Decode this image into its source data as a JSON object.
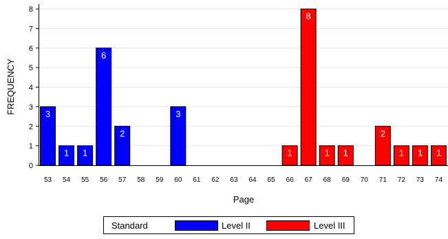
{
  "chart_data": {
    "type": "bar",
    "title": "",
    "xlabel": "Page",
    "ylabel": "FREQUENCY",
    "ylim": [
      0,
      8
    ],
    "yticks": [
      0,
      1,
      2,
      3,
      4,
      5,
      6,
      7,
      8
    ],
    "grid": true,
    "legend_position": "bottom",
    "legend_title": "Standard",
    "categories": [
      "53",
      "54",
      "55",
      "56",
      "57",
      "58",
      "59",
      "60",
      "61",
      "62",
      "63",
      "64",
      "65",
      "66",
      "67",
      "68",
      "69",
      "70",
      "71",
      "72",
      "73",
      "74"
    ],
    "series": [
      {
        "name": "Level II",
        "color": "#0000FF",
        "values": [
          3,
          1,
          1,
          6,
          2,
          null,
          null,
          3,
          null,
          null,
          null,
          null,
          null,
          null,
          null,
          null,
          null,
          null,
          null,
          null,
          null,
          null
        ]
      },
      {
        "name": "Level III",
        "color": "#FF0000",
        "values": [
          null,
          null,
          null,
          null,
          null,
          null,
          null,
          null,
          null,
          null,
          null,
          null,
          null,
          1,
          8,
          1,
          1,
          null,
          2,
          1,
          1,
          1
        ]
      }
    ]
  }
}
